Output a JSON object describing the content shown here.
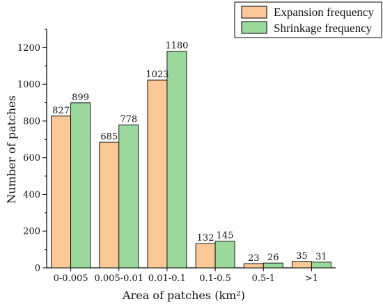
{
  "chart_data": {
    "type": "bar",
    "title": "",
    "xlabel": "Area of patches (km²)",
    "ylabel": "Number of patches",
    "categories": [
      "0-0.005",
      "0.005-0.01",
      "0.01-0.1",
      "0.1-0.5",
      "0.5-1",
      ">1"
    ],
    "series": [
      {
        "name": "Expansion frequency",
        "values": [
          827,
          685,
          1023,
          132,
          23,
          35
        ],
        "color": "#FDC897"
      },
      {
        "name": "Shrinkage frequency",
        "values": [
          899,
          778,
          1180,
          145,
          26,
          31
        ],
        "color": "#9AD89B"
      }
    ],
    "ylim": [
      0,
      1300
    ],
    "yticks": [
      "0",
      "200",
      "400",
      "600",
      "800",
      "1000",
      "1200"
    ],
    "grid": false,
    "legend_position": "top-right"
  }
}
